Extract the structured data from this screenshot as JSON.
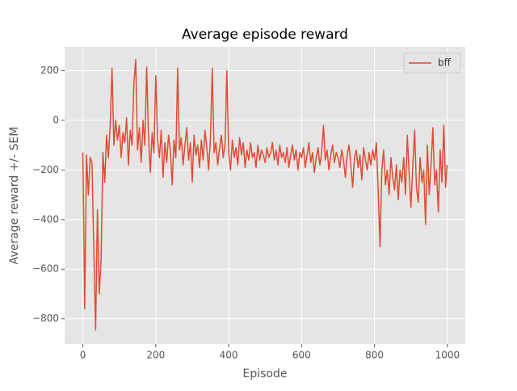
{
  "chart_data": {
    "type": "line",
    "title": "Average episode reward",
    "x_label": "Episode",
    "y_label": "Average reward +/- SEM",
    "x": [
      0,
      5,
      10,
      15,
      20,
      25,
      30,
      35,
      40,
      45,
      50,
      55,
      60,
      65,
      70,
      75,
      80,
      85,
      90,
      95,
      100,
      105,
      110,
      115,
      120,
      125,
      130,
      135,
      140,
      145,
      150,
      155,
      160,
      165,
      170,
      175,
      180,
      185,
      190,
      195,
      200,
      205,
      210,
      215,
      220,
      225,
      230,
      235,
      240,
      245,
      250,
      255,
      260,
      265,
      270,
      275,
      280,
      285,
      290,
      295,
      300,
      305,
      310,
      315,
      320,
      325,
      330,
      335,
      340,
      345,
      350,
      355,
      360,
      365,
      370,
      375,
      380,
      385,
      390,
      395,
      400,
      405,
      410,
      415,
      420,
      425,
      430,
      435,
      440,
      445,
      450,
      455,
      460,
      465,
      470,
      475,
      480,
      485,
      490,
      495,
      500,
      505,
      510,
      515,
      520,
      525,
      530,
      535,
      540,
      545,
      550,
      555,
      560,
      565,
      570,
      575,
      580,
      585,
      590,
      595,
      600,
      605,
      610,
      615,
      620,
      625,
      630,
      635,
      640,
      645,
      650,
      655,
      660,
      665,
      670,
      675,
      680,
      685,
      690,
      695,
      700,
      705,
      710,
      715,
      720,
      725,
      730,
      735,
      740,
      745,
      750,
      755,
      760,
      765,
      770,
      775,
      780,
      785,
      790,
      795,
      800,
      805,
      810,
      815,
      820,
      825,
      830,
      835,
      840,
      845,
      850,
      855,
      860,
      865,
      870,
      875,
      880,
      885,
      890,
      895,
      900,
      905,
      910,
      915,
      920,
      925,
      930,
      935,
      940,
      945,
      950,
      955,
      960,
      965,
      970,
      975,
      980,
      985,
      990,
      995,
      999
    ],
    "series": [
      {
        "name": "bff",
        "color": "#e24a33",
        "values": [
          -130,
          -760,
          -140,
          -300,
          -150,
          -170,
          -520,
          -845,
          -360,
          -700,
          -560,
          -130,
          -250,
          -60,
          -150,
          -20,
          210,
          -100,
          0,
          -80,
          -20,
          -150,
          -50,
          -90,
          10,
          -180,
          -40,
          -100,
          150,
          245,
          -120,
          -30,
          -170,
          0,
          -100,
          215,
          -60,
          -210,
          -50,
          -130,
          180,
          -80,
          -150,
          -40,
          -230,
          -90,
          -170,
          -60,
          -120,
          -260,
          -80,
          -150,
          210,
          -120,
          -70,
          -180,
          -100,
          -30,
          -160,
          -90,
          -250,
          -60,
          -140,
          -100,
          -190,
          -80,
          -160,
          -40,
          -110,
          -200,
          -70,
          210,
          -130,
          -90,
          -180,
          -110,
          -60,
          -150,
          -100,
          200,
          -130,
          -200,
          -80,
          -150,
          -110,
          -180,
          -70,
          -140,
          -90,
          -190,
          -120,
          -160,
          -90,
          -150,
          -130,
          -190,
          -100,
          -160,
          -120,
          -140,
          -170,
          -110,
          -150,
          -130,
          -90,
          -160,
          -120,
          -180,
          -100,
          -150,
          -130,
          -170,
          -110,
          -190,
          -140,
          -100,
          -160,
          -120,
          -200,
          -130,
          -150,
          -110,
          -190,
          -140,
          -90,
          -170,
          -130,
          -210,
          -150,
          -110,
          -180,
          -130,
          -20,
          -160,
          -120,
          -200,
          -140,
          -100,
          -170,
          -130,
          -150,
          -190,
          -120,
          -160,
          -230,
          -140,
          -100,
          -180,
          -270,
          -150,
          -120,
          -190,
          -140,
          -240,
          -110,
          -160,
          -200,
          -130,
          -180,
          -120,
          -160,
          -90,
          -280,
          -510,
          -200,
          -120,
          -260,
          -200,
          -300,
          -150,
          -230,
          -280,
          -180,
          -320,
          -200,
          -250,
          -150,
          -300,
          -60,
          -220,
          -350,
          -180,
          -40,
          -270,
          -330,
          -150,
          -250,
          -200,
          -420,
          -100,
          -300,
          -180,
          -30,
          -260,
          -200,
          -370,
          -120,
          -250,
          -20,
          -270,
          -180
        ]
      }
    ],
    "xlim": [
      -50,
      1049
    ],
    "ylim": [
      -902,
      296
    ],
    "xticks": [
      0,
      200,
      400,
      600,
      800,
      1000
    ],
    "yticks": [
      {
        "value": -800,
        "label": "−800"
      },
      {
        "value": -600,
        "label": "−600"
      },
      {
        "value": -400,
        "label": "−400"
      },
      {
        "value": -200,
        "label": "−200"
      },
      0,
      200
    ],
    "grid": true,
    "legend": "upper right"
  }
}
